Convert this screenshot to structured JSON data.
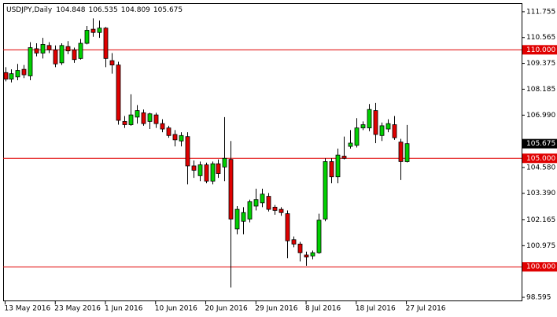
{
  "chart_data": {
    "type": "candlestick",
    "title": "USDJPY,Daily",
    "categories": [
      "13 May 2016",
      null,
      null,
      null,
      null,
      null,
      null,
      null,
      "23 May 2016",
      null,
      null,
      null,
      null,
      null,
      null,
      null,
      "1 Jun 2016",
      null,
      null,
      null,
      null,
      null,
      null,
      null,
      "10 Jun 2016",
      null,
      null,
      null,
      null,
      null,
      null,
      null,
      "20 Jun 2016",
      null,
      null,
      null,
      null,
      null,
      null,
      null,
      "29 Jun 2016",
      null,
      null,
      null,
      null,
      null,
      null,
      null,
      "8 Jul 2016",
      null,
      null,
      null,
      null,
      null,
      null,
      null,
      "18 Jul 2016",
      null,
      null,
      null,
      null,
      null,
      null,
      null,
      "27 Jul 2016"
    ],
    "open": [
      108.95,
      108.65,
      108.75,
      109.1,
      108.8,
      110.05,
      109.85,
      110.2,
      110.0,
      109.4,
      110.15,
      110.0,
      109.6,
      110.3,
      110.95,
      110.8,
      111.0,
      109.5,
      109.3,
      106.7,
      106.55,
      106.9,
      107.1,
      106.7,
      107.0,
      106.6,
      106.4,
      106.1,
      105.8,
      106.0,
      104.65,
      104.2,
      104.7,
      103.95,
      104.75,
      104.6,
      104.95,
      101.75,
      102.1,
      102.2,
      102.8,
      102.95,
      103.25,
      102.75,
      102.65,
      102.45,
      101.25,
      101.05,
      100.55,
      100.5,
      100.65,
      102.2,
      104.85,
      104.15,
      105.1,
      105.55,
      105.6,
      106.4,
      106.4,
      107.2,
      106.05,
      106.35,
      106.55,
      105.75,
      104.848
    ],
    "high": [
      109.2,
      109.1,
      109.35,
      109.3,
      110.35,
      110.3,
      110.55,
      110.35,
      110.2,
      110.3,
      110.4,
      110.1,
      110.5,
      111.1,
      111.45,
      111.35,
      111.05,
      109.85,
      109.45,
      106.95,
      107.95,
      107.45,
      107.25,
      107.1,
      107.1,
      106.8,
      106.5,
      106.3,
      106.2,
      106.2,
      104.9,
      104.85,
      104.8,
      104.85,
      104.95,
      106.9,
      105.8,
      102.8,
      102.75,
      103.1,
      103.6,
      103.6,
      103.4,
      102.85,
      102.75,
      102.6,
      101.4,
      101.15,
      100.7,
      100.75,
      102.45,
      105.0,
      105.0,
      105.45,
      106.0,
      106.3,
      106.85,
      106.7,
      107.5,
      107.55,
      106.65,
      106.8,
      106.95,
      105.9,
      106.535
    ],
    "low": [
      108.55,
      108.5,
      108.6,
      108.7,
      108.6,
      109.7,
      109.6,
      109.85,
      109.2,
      109.3,
      109.8,
      109.4,
      109.55,
      110.25,
      110.6,
      110.55,
      109.2,
      108.9,
      106.55,
      106.4,
      106.5,
      106.6,
      106.5,
      106.35,
      106.4,
      106.2,
      105.95,
      105.55,
      105.55,
      103.8,
      104.1,
      103.95,
      103.85,
      103.8,
      104.1,
      103.95,
      99.05,
      101.5,
      101.5,
      102.05,
      102.6,
      102.75,
      102.55,
      102.4,
      102.35,
      100.4,
      100.9,
      100.25,
      100.05,
      100.35,
      100.6,
      102.1,
      103.85,
      103.85,
      104.95,
      105.45,
      105.5,
      106.3,
      106.25,
      105.7,
      105.8,
      106.2,
      105.85,
      104.0,
      104.809
    ],
    "close": [
      108.65,
      108.9,
      109.05,
      108.85,
      110.1,
      109.85,
      110.25,
      110.0,
      109.35,
      110.2,
      109.95,
      109.55,
      110.3,
      110.9,
      110.8,
      111.0,
      109.6,
      109.3,
      106.75,
      106.55,
      107.0,
      107.2,
      106.6,
      107.05,
      106.6,
      106.35,
      106.05,
      105.85,
      106.05,
      104.65,
      104.45,
      104.7,
      103.95,
      104.75,
      104.3,
      105.0,
      102.2,
      102.65,
      102.5,
      103.0,
      103.1,
      103.35,
      102.65,
      102.6,
      102.5,
      101.2,
      101.05,
      100.65,
      100.45,
      100.65,
      102.15,
      104.85,
      104.15,
      105.15,
      105.0,
      105.7,
      106.4,
      106.55,
      107.25,
      106.1,
      106.5,
      106.6,
      105.95,
      104.85,
      105.675
    ],
    "up_color": "#00d000",
    "down_color": "#e00000",
    "ylim": [
      98.45,
      112.15
    ],
    "yticks": [
      111.755,
      110.565,
      109.375,
      108.185,
      {
        "value": 106.99,
        "label": "106.990"
      },
      {
        "value": 104.58,
        "label": "104.580"
      },
      {
        "value": 103.39,
        "label": "103.390"
      },
      102.165,
      100.975,
      98.595
    ],
    "hlines": [
      {
        "value": 110,
        "label": "110.000",
        "color": "#e00000"
      },
      {
        "value": 105,
        "label": "105.000",
        "color": "#e00000"
      },
      {
        "value": 100,
        "label": "100.000",
        "color": "#e00000"
      }
    ]
  }
}
